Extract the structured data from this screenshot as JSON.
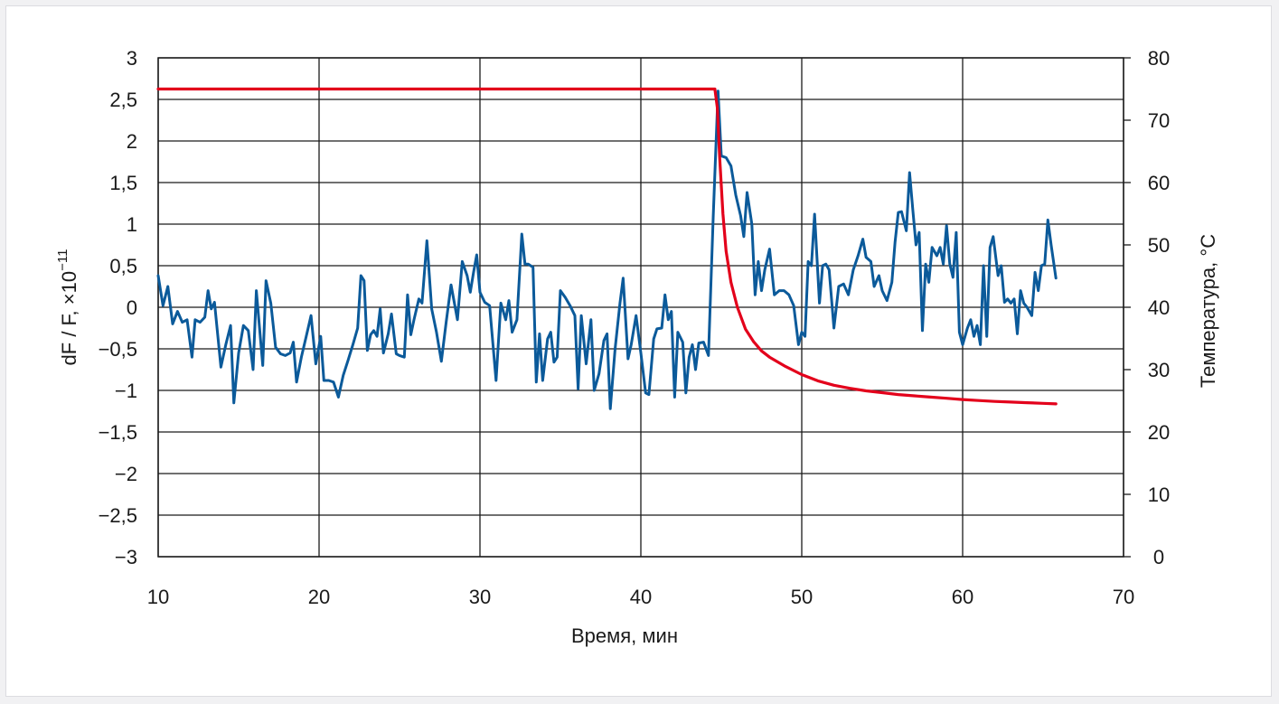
{
  "chart_data": {
    "type": "line",
    "title": "",
    "xlabel": "Время, мин",
    "ylabel_left_main": "dF / F, ×10",
    "ylabel_left_exp": "−11",
    "ylabel_right": "Температура, °C",
    "xlim": [
      10,
      70
    ],
    "ylim_left": [
      -3,
      3
    ],
    "ylim_right": [
      0,
      80
    ],
    "x_ticks": [
      "10",
      "20",
      "30",
      "40",
      "50",
      "60",
      "70"
    ],
    "y_left_ticks": [
      "3",
      "2,5",
      "2",
      "1,5",
      "1",
      "0,5",
      "0",
      "−0,5",
      "−1",
      "−1,5",
      "−2",
      "−2,5",
      "−3"
    ],
    "y_right_ticks": [
      "80",
      "70",
      "60",
      "50",
      "40",
      "30",
      "20",
      "10",
      "0"
    ],
    "grid": true,
    "series": [
      {
        "axis": "left",
        "color": "#0b5a9a",
        "points": [
          [
            10.0,
            0.38
          ],
          [
            10.3,
            0.02
          ],
          [
            10.6,
            0.25
          ],
          [
            10.9,
            -0.2
          ],
          [
            11.2,
            -0.05
          ],
          [
            11.5,
            -0.18
          ],
          [
            11.8,
            -0.15
          ],
          [
            12.1,
            -0.6
          ],
          [
            12.3,
            -0.15
          ],
          [
            12.6,
            -0.18
          ],
          [
            12.9,
            -0.12
          ],
          [
            13.1,
            0.2
          ],
          [
            13.3,
            -0.02
          ],
          [
            13.5,
            0.06
          ],
          [
            13.9,
            -0.72
          ],
          [
            14.2,
            -0.45
          ],
          [
            14.5,
            -0.22
          ],
          [
            14.7,
            -1.15
          ],
          [
            15.0,
            -0.55
          ],
          [
            15.3,
            -0.22
          ],
          [
            15.6,
            -0.28
          ],
          [
            15.9,
            -0.75
          ],
          [
            16.1,
            0.2
          ],
          [
            16.5,
            -0.7
          ],
          [
            16.7,
            0.32
          ],
          [
            17.0,
            0.05
          ],
          [
            17.3,
            -0.48
          ],
          [
            17.6,
            -0.56
          ],
          [
            17.9,
            -0.58
          ],
          [
            18.2,
            -0.55
          ],
          [
            18.4,
            -0.42
          ],
          [
            18.6,
            -0.9
          ],
          [
            18.9,
            -0.6
          ],
          [
            19.2,
            -0.35
          ],
          [
            19.5,
            -0.1
          ],
          [
            19.8,
            -0.68
          ],
          [
            20.1,
            -0.35
          ],
          [
            20.3,
            -0.88
          ],
          [
            20.6,
            -0.88
          ],
          [
            20.9,
            -0.9
          ],
          [
            21.2,
            -1.08
          ],
          [
            21.5,
            -0.82
          ],
          [
            21.8,
            -0.64
          ],
          [
            22.1,
            -0.45
          ],
          [
            22.4,
            -0.25
          ],
          [
            22.6,
            0.38
          ],
          [
            22.8,
            0.32
          ],
          [
            23.0,
            -0.52
          ],
          [
            23.2,
            -0.33
          ],
          [
            23.4,
            -0.28
          ],
          [
            23.6,
            -0.35
          ],
          [
            23.8,
            -0.02
          ],
          [
            24.0,
            -0.55
          ],
          [
            24.3,
            -0.32
          ],
          [
            24.5,
            -0.08
          ],
          [
            24.8,
            -0.56
          ],
          [
            25.0,
            -0.58
          ],
          [
            25.3,
            -0.6
          ],
          [
            25.5,
            0.15
          ],
          [
            25.7,
            -0.33
          ],
          [
            25.9,
            -0.15
          ],
          [
            26.2,
            0.1
          ],
          [
            26.4,
            0.05
          ],
          [
            26.7,
            0.8
          ],
          [
            27.0,
            -0.02
          ],
          [
            27.3,
            -0.3
          ],
          [
            27.6,
            -0.65
          ],
          [
            27.9,
            -0.18
          ],
          [
            28.2,
            0.27
          ],
          [
            28.6,
            -0.15
          ],
          [
            28.9,
            0.55
          ],
          [
            29.2,
            0.38
          ],
          [
            29.4,
            0.18
          ],
          [
            29.6,
            0.42
          ],
          [
            29.8,
            0.63
          ],
          [
            30.0,
            0.18
          ],
          [
            30.3,
            0.06
          ],
          [
            30.6,
            0.02
          ],
          [
            31.0,
            -0.88
          ],
          [
            31.3,
            0.05
          ],
          [
            31.6,
            -0.15
          ],
          [
            31.8,
            0.08
          ],
          [
            32.0,
            -0.3
          ],
          [
            32.3,
            -0.15
          ],
          [
            32.6,
            0.88
          ],
          [
            32.8,
            0.52
          ],
          [
            33.0,
            0.52
          ],
          [
            33.3,
            0.48
          ],
          [
            33.5,
            -0.9
          ],
          [
            33.7,
            -0.32
          ],
          [
            33.9,
            -0.88
          ],
          [
            34.2,
            -0.38
          ],
          [
            34.4,
            -0.3
          ],
          [
            34.6,
            -0.66
          ],
          [
            34.8,
            -0.6
          ],
          [
            35.0,
            0.2
          ],
          [
            35.3,
            0.12
          ],
          [
            35.6,
            0.02
          ],
          [
            35.9,
            -0.1
          ],
          [
            36.1,
            -0.98
          ],
          [
            36.3,
            -0.1
          ],
          [
            36.6,
            -0.68
          ],
          [
            36.9,
            -0.15
          ],
          [
            37.1,
            -1.0
          ],
          [
            37.4,
            -0.8
          ],
          [
            37.7,
            -0.4
          ],
          [
            37.9,
            -0.32
          ],
          [
            38.1,
            -1.22
          ],
          [
            38.4,
            -0.5
          ],
          [
            38.7,
            0.05
          ],
          [
            38.9,
            0.35
          ],
          [
            39.2,
            -0.62
          ],
          [
            39.4,
            -0.45
          ],
          [
            39.7,
            -0.1
          ],
          [
            40.0,
            -0.55
          ],
          [
            40.3,
            -1.03
          ],
          [
            40.5,
            -1.05
          ],
          [
            40.8,
            -0.38
          ],
          [
            41.0,
            -0.26
          ],
          [
            41.3,
            -0.25
          ],
          [
            41.5,
            0.15
          ],
          [
            41.7,
            -0.15
          ],
          [
            41.9,
            -0.05
          ],
          [
            42.1,
            -1.08
          ],
          [
            42.3,
            -0.3
          ],
          [
            42.6,
            -0.42
          ],
          [
            42.8,
            -1.03
          ],
          [
            43.0,
            -0.6
          ],
          [
            43.2,
            -0.45
          ],
          [
            43.4,
            -0.75
          ],
          [
            43.6,
            -0.43
          ],
          [
            43.9,
            -0.42
          ],
          [
            44.2,
            -0.58
          ],
          [
            44.5,
            1.1
          ],
          [
            44.8,
            2.6
          ],
          [
            45.0,
            1.82
          ],
          [
            45.3,
            1.8
          ],
          [
            45.6,
            1.7
          ],
          [
            45.9,
            1.35
          ],
          [
            46.2,
            1.1
          ],
          [
            46.4,
            0.85
          ],
          [
            46.6,
            1.38
          ],
          [
            46.9,
            1.0
          ],
          [
            47.1,
            0.15
          ],
          [
            47.3,
            0.55
          ],
          [
            47.5,
            0.2
          ],
          [
            47.7,
            0.45
          ],
          [
            48.0,
            0.7
          ],
          [
            48.3,
            0.15
          ],
          [
            48.6,
            0.2
          ],
          [
            48.9,
            0.2
          ],
          [
            49.2,
            0.15
          ],
          [
            49.5,
            0.02
          ],
          [
            49.8,
            -0.45
          ],
          [
            50.0,
            -0.3
          ],
          [
            50.2,
            -0.35
          ],
          [
            50.4,
            0.55
          ],
          [
            50.6,
            0.5
          ],
          [
            50.8,
            1.12
          ],
          [
            51.1,
            0.05
          ],
          [
            51.3,
            0.5
          ],
          [
            51.5,
            0.52
          ],
          [
            51.7,
            0.45
          ],
          [
            52.0,
            -0.25
          ],
          [
            52.3,
            0.25
          ],
          [
            52.6,
            0.28
          ],
          [
            52.9,
            0.15
          ],
          [
            53.2,
            0.45
          ],
          [
            53.5,
            0.62
          ],
          [
            53.8,
            0.82
          ],
          [
            54.0,
            0.6
          ],
          [
            54.3,
            0.55
          ],
          [
            54.5,
            0.25
          ],
          [
            54.8,
            0.38
          ],
          [
            55.0,
            0.2
          ],
          [
            55.3,
            0.08
          ],
          [
            55.6,
            0.3
          ],
          [
            55.8,
            0.78
          ],
          [
            56.0,
            1.14
          ],
          [
            56.2,
            1.15
          ],
          [
            56.5,
            0.92
          ],
          [
            56.7,
            1.62
          ],
          [
            56.9,
            1.18
          ],
          [
            57.1,
            0.75
          ],
          [
            57.3,
            0.9
          ],
          [
            57.5,
            -0.28
          ],
          [
            57.7,
            0.52
          ],
          [
            57.9,
            0.3
          ],
          [
            58.1,
            0.72
          ],
          [
            58.4,
            0.62
          ],
          [
            58.6,
            0.72
          ],
          [
            58.8,
            0.52
          ],
          [
            59.0,
            0.98
          ],
          [
            59.2,
            0.52
          ],
          [
            59.4,
            0.36
          ],
          [
            59.6,
            0.9
          ],
          [
            59.8,
            -0.3
          ],
          [
            60.0,
            -0.45
          ],
          [
            60.3,
            -0.25
          ],
          [
            60.5,
            -0.15
          ],
          [
            60.7,
            -0.35
          ],
          [
            60.9,
            -0.22
          ],
          [
            61.1,
            -0.45
          ],
          [
            61.3,
            0.5
          ],
          [
            61.5,
            -0.35
          ],
          [
            61.7,
            0.72
          ],
          [
            61.9,
            0.85
          ],
          [
            62.2,
            0.38
          ],
          [
            62.4,
            0.5
          ],
          [
            62.6,
            0.06
          ],
          [
            62.8,
            0.1
          ],
          [
            63.0,
            0.05
          ],
          [
            63.2,
            0.1
          ],
          [
            63.4,
            -0.32
          ],
          [
            63.6,
            0.2
          ],
          [
            63.8,
            0.05
          ],
          [
            64.0,
            0.0
          ],
          [
            64.3,
            -0.1
          ],
          [
            64.5,
            0.42
          ],
          [
            64.7,
            0.2
          ],
          [
            64.9,
            0.5
          ],
          [
            65.1,
            0.52
          ],
          [
            65.3,
            1.05
          ],
          [
            65.5,
            0.75
          ],
          [
            65.8,
            0.35
          ]
        ]
      },
      {
        "axis": "right",
        "color": "#e3001b",
        "points": [
          [
            10,
            75
          ],
          [
            44.6,
            75
          ],
          [
            44.75,
            72
          ],
          [
            44.9,
            64
          ],
          [
            45.1,
            55
          ],
          [
            45.3,
            49
          ],
          [
            45.6,
            44
          ],
          [
            46.0,
            40
          ],
          [
            46.5,
            36.5
          ],
          [
            47.0,
            34.5
          ],
          [
            47.5,
            33
          ],
          [
            48.0,
            32
          ],
          [
            49.0,
            30.5
          ],
          [
            50.0,
            29.2
          ],
          [
            51.0,
            28.2
          ],
          [
            52.0,
            27.5
          ],
          [
            53.0,
            27.0
          ],
          [
            54.0,
            26.6
          ],
          [
            55.0,
            26.3
          ],
          [
            56.0,
            26.0
          ],
          [
            57.0,
            25.8
          ],
          [
            58.0,
            25.6
          ],
          [
            59.0,
            25.4
          ],
          [
            60.0,
            25.2
          ],
          [
            61.0,
            25.05
          ],
          [
            62.0,
            24.9
          ],
          [
            63.0,
            24.8
          ],
          [
            64.0,
            24.7
          ],
          [
            65.0,
            24.6
          ],
          [
            65.8,
            24.5
          ]
        ]
      }
    ]
  }
}
